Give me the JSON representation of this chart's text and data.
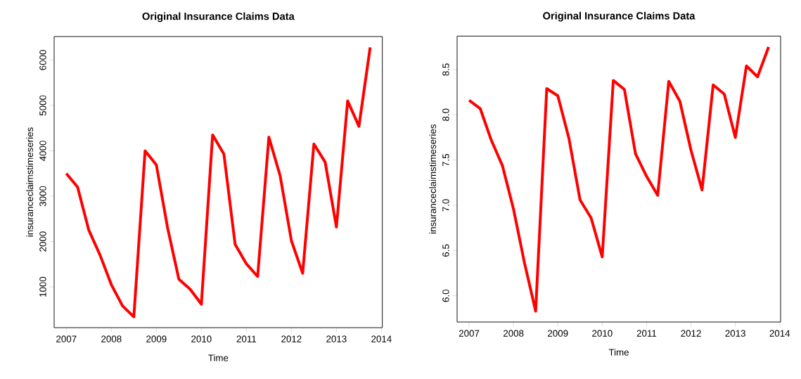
{
  "chart_data": [
    {
      "type": "line",
      "title": "Original Insurance Claims Data",
      "xlabel": "Time",
      "ylabel": "insuranceclaimstimeseries",
      "color": "#ff0000",
      "x": [
        2007,
        2007.25,
        2007.5,
        2007.75,
        2008,
        2008.25,
        2008.5,
        2008.75,
        2009,
        2009.25,
        2009.5,
        2009.75,
        2010,
        2010.25,
        2010.5,
        2010.75,
        2011,
        2011.25,
        2011.5,
        2011.75,
        2012,
        2012.25,
        2012.5,
        2012.75,
        2013,
        2013.25,
        2013.5,
        2013.75
      ],
      "values": [
        3500,
        3200,
        2250,
        1700,
        1050,
        580,
        340,
        4000,
        3690,
        2300,
        1170,
        950,
        620,
        4350,
        3930,
        1940,
        1510,
        1230,
        4300,
        3450,
        2020,
        1300,
        4150,
        3750,
        2320,
        5100,
        4540,
        6280
      ],
      "xlim": [
        2006.73,
        2014.02
      ],
      "ylim": [
        102,
        6518
      ],
      "xticks": [
        2007,
        2008,
        2009,
        2010,
        2011,
        2012,
        2013,
        2014
      ],
      "yticks": [
        1000,
        2000,
        3000,
        4000,
        5000,
        6000
      ]
    },
    {
      "type": "line",
      "title": "Original Insurance Claims Data",
      "xlabel": "Time",
      "ylabel": "insuranceclaimstimeseries",
      "color": "#ff0000",
      "x": [
        2007,
        2007.25,
        2007.5,
        2007.75,
        2008,
        2008.25,
        2008.5,
        2008.75,
        2009,
        2009.25,
        2009.5,
        2009.75,
        2010,
        2010.25,
        2010.5,
        2010.75,
        2011,
        2011.25,
        2011.5,
        2011.75,
        2012,
        2012.25,
        2012.5,
        2012.75,
        2013,
        2013.25,
        2013.5,
        2013.75
      ],
      "values": [
        8.16,
        8.07,
        7.72,
        7.44,
        6.96,
        6.36,
        5.83,
        8.29,
        8.21,
        7.74,
        7.06,
        6.86,
        6.43,
        8.38,
        8.28,
        7.57,
        7.32,
        7.11,
        8.37,
        8.15,
        7.61,
        7.17,
        8.33,
        8.23,
        7.75,
        8.54,
        8.42,
        8.75
      ],
      "xlim": [
        2006.73,
        2014.02
      ],
      "ylim": [
        5.71,
        8.87
      ],
      "xticks": [
        2007,
        2008,
        2009,
        2010,
        2011,
        2012,
        2013,
        2014
      ],
      "yticks": [
        {
          "value": 6,
          "label": "6.0"
        },
        {
          "value": 6.5,
          "label": "6.5"
        },
        {
          "value": 7,
          "label": "7.0"
        },
        {
          "value": 7.5,
          "label": "7.5"
        },
        {
          "value": 8,
          "label": "8.0"
        },
        {
          "value": 8.5,
          "label": "8.5"
        }
      ]
    }
  ]
}
